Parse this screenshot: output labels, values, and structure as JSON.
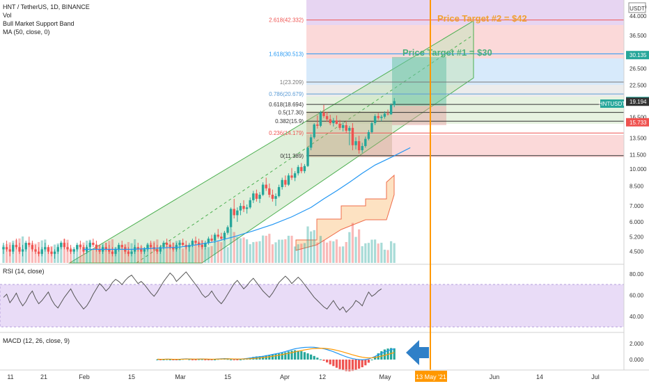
{
  "header": {
    "symbol": "HNT / TetherUS, 1D, BINANCE",
    "vol": "Vol",
    "band": "Bull Market Support Band",
    "ma": "MA (50, close, 0)",
    "currency": "USDT"
  },
  "colors": {
    "up": "#26a69a",
    "down": "#ef5350",
    "ma": "#2196f3",
    "rsi_line": "#555555",
    "rsi_band": "#e9dcf7",
    "macd": "#2196f3",
    "signal": "#ff9800",
    "channel": "#4caf50",
    "vertical_line": "#ff9800",
    "arrow": "#2f80c8"
  },
  "annotations": {
    "target1": "Price Target #1 = $30",
    "target2": "Price Target #2 = $42",
    "date_marker": "13 May '21"
  },
  "fib_levels": [
    {
      "label": "2.618(42.332)",
      "price": 42.332,
      "color": "#ef5350"
    },
    {
      "label": "1.618(30.513)",
      "price": 30.513,
      "color": "#2196f3"
    },
    {
      "label": "1(23.209)",
      "price": 23.209,
      "color": "#787878"
    },
    {
      "label": "0.786(20.679)",
      "price": 20.679,
      "color": "#5b9bd5"
    },
    {
      "label": "0.618(18.694)",
      "price": 18.694,
      "color": "#333333"
    },
    {
      "label": "0.5(17.30)",
      "price": 17.3,
      "color": "#333333"
    },
    {
      "label": "0.382(15.9)",
      "price": 15.9,
      "color": "#333333"
    },
    {
      "label": "0.236(14.179)",
      "price": 14.179,
      "color": "#ef5350"
    },
    {
      "label": "0(11.389)",
      "price": 11.389,
      "color": "#333333"
    }
  ],
  "price_badges": [
    {
      "text": "30.135",
      "price": 30.135,
      "color": "#26a69a"
    },
    {
      "text": "19.328",
      "price": 19.328,
      "color": "#26a69a"
    },
    {
      "text": "19.194",
      "price": 19.194,
      "color": "#333333"
    },
    {
      "text": "15.733",
      "price": 15.733,
      "color": "#ef5350"
    }
  ],
  "ticker_tag": "HNTUSDT",
  "price_axis": [
    "48.000",
    "44.000",
    "36.500",
    "30.135",
    "26.500",
    "22.500",
    "19.328",
    "16.500",
    "13.500",
    "11.500",
    "10.000",
    "8.500",
    "7.000",
    "6.000",
    "5.200",
    "4.500"
  ],
  "rsi_panel": {
    "label": "RSI (14, close)",
    "ticks": [
      "80.00",
      "60.00",
      "40.00"
    ]
  },
  "macd_panel": {
    "label": "MACD (12, 26, close, 9)",
    "ticks": [
      "2.000",
      "0.000"
    ]
  },
  "time_axis": [
    "11",
    "21",
    "Feb",
    "15",
    "Mar",
    "15",
    "Apr",
    "12",
    "May",
    "Jun",
    "14",
    "Jul"
  ],
  "chart_data": {
    "type": "candlestick",
    "y_scale": "log",
    "ylim": [
      4.2,
      50
    ],
    "x_start": "2021-01-05",
    "candles": [
      [
        4.6,
        4.9,
        4.4,
        4.7
      ],
      [
        4.7,
        5.0,
        4.5,
        4.6
      ],
      [
        4.6,
        4.8,
        4.3,
        4.5
      ],
      [
        4.5,
        4.9,
        4.4,
        4.8
      ],
      [
        4.8,
        5.1,
        4.6,
        4.7
      ],
      [
        4.7,
        4.9,
        4.4,
        4.5
      ],
      [
        4.5,
        4.8,
        4.3,
        4.6
      ],
      [
        4.6,
        5.0,
        4.5,
        4.9
      ],
      [
        4.9,
        5.2,
        4.7,
        4.8
      ],
      [
        4.8,
        5.0,
        4.5,
        4.6
      ],
      [
        4.6,
        4.8,
        4.4,
        4.5
      ],
      [
        4.5,
        4.7,
        4.3,
        4.4
      ],
      [
        4.4,
        4.7,
        4.3,
        4.6
      ],
      [
        4.6,
        4.9,
        4.5,
        4.7
      ],
      [
        4.7,
        4.8,
        4.4,
        4.5
      ],
      [
        4.5,
        4.7,
        4.3,
        4.4
      ],
      [
        4.4,
        4.6,
        4.2,
        4.5
      ],
      [
        4.5,
        4.8,
        4.4,
        4.7
      ],
      [
        4.7,
        5.0,
        4.6,
        4.9
      ],
      [
        4.9,
        5.1,
        4.6,
        4.7
      ],
      [
        4.7,
        4.9,
        4.5,
        4.6
      ],
      [
        4.6,
        4.8,
        4.4,
        4.5
      ],
      [
        4.5,
        4.7,
        4.4,
        4.6
      ],
      [
        4.6,
        4.9,
        4.5,
        4.8
      ],
      [
        4.8,
        5.0,
        4.6,
        4.7
      ],
      [
        4.7,
        4.8,
        4.4,
        4.5
      ],
      [
        4.5,
        4.8,
        4.4,
        4.7
      ],
      [
        4.7,
        5.0,
        4.6,
        4.9
      ],
      [
        4.9,
        5.1,
        4.7,
        4.8
      ],
      [
        4.8,
        5.0,
        4.5,
        4.6
      ],
      [
        4.6,
        4.8,
        4.4,
        4.5
      ],
      [
        4.5,
        4.8,
        4.4,
        4.7
      ],
      [
        4.7,
        4.9,
        4.5,
        4.6
      ],
      [
        4.6,
        4.8,
        4.4,
        4.5
      ],
      [
        4.5,
        4.7,
        4.3,
        4.4
      ],
      [
        4.4,
        4.7,
        4.3,
        4.6
      ],
      [
        4.6,
        4.9,
        4.5,
        4.8
      ],
      [
        4.8,
        5.0,
        4.6,
        4.7
      ],
      [
        4.7,
        4.8,
        4.4,
        4.5
      ],
      [
        4.5,
        4.7,
        4.3,
        4.4
      ],
      [
        4.4,
        4.6,
        4.3,
        4.5
      ],
      [
        4.5,
        4.8,
        4.4,
        4.7
      ],
      [
        4.7,
        4.9,
        4.5,
        4.6
      ],
      [
        4.6,
        4.8,
        4.4,
        4.5
      ],
      [
        4.5,
        4.7,
        4.4,
        4.6
      ],
      [
        4.6,
        4.9,
        4.5,
        4.8
      ],
      [
        4.8,
        5.0,
        4.6,
        4.7
      ],
      [
        4.7,
        4.9,
        4.5,
        4.6
      ],
      [
        4.6,
        4.8,
        4.4,
        4.5
      ],
      [
        4.5,
        4.8,
        4.4,
        4.7
      ],
      [
        4.7,
        5.0,
        4.6,
        4.9
      ],
      [
        4.9,
        5.1,
        4.7,
        4.8
      ],
      [
        4.8,
        5.0,
        4.6,
        4.7
      ],
      [
        4.7,
        4.9,
        4.5,
        4.6
      ],
      [
        4.6,
        4.9,
        4.5,
        4.8
      ],
      [
        4.8,
        5.0,
        4.6,
        4.9
      ],
      [
        4.9,
        5.1,
        4.7,
        4.8
      ],
      [
        4.8,
        5.0,
        4.6,
        4.7
      ],
      [
        4.7,
        4.9,
        4.5,
        4.8
      ],
      [
        4.8,
        5.1,
        4.7,
        5.0
      ],
      [
        5.0,
        5.2,
        4.8,
        4.9
      ],
      [
        4.9,
        5.1,
        4.7,
        4.8
      ],
      [
        4.8,
        5.0,
        4.6,
        4.7
      ],
      [
        4.7,
        5.0,
        4.6,
        4.9
      ],
      [
        4.9,
        5.2,
        4.8,
        5.1
      ],
      [
        5.1,
        5.3,
        4.9,
        5.0
      ],
      [
        5.0,
        5.4,
        4.9,
        5.3
      ],
      [
        5.3,
        5.6,
        5.1,
        5.2
      ],
      [
        5.2,
        5.4,
        5.0,
        5.1
      ],
      [
        5.1,
        5.5,
        5.0,
        5.4
      ],
      [
        5.4,
        5.8,
        5.3,
        5.7
      ],
      [
        5.7,
        6.9,
        5.6,
        6.8
      ],
      [
        6.8,
        7.5,
        6.2,
        6.4
      ],
      [
        6.4,
        6.9,
        6.0,
        6.7
      ],
      [
        6.7,
        7.2,
        6.4,
        7.0
      ],
      [
        7.0,
        7.4,
        6.6,
        6.8
      ],
      [
        6.8,
        7.1,
        6.5,
        6.9
      ],
      [
        6.9,
        7.6,
        6.8,
        7.4
      ],
      [
        7.4,
        8.1,
        7.2,
        7.9
      ],
      [
        7.9,
        8.2,
        7.3,
        7.5
      ],
      [
        7.5,
        8.0,
        7.2,
        7.8
      ],
      [
        7.8,
        8.8,
        7.7,
        8.6
      ],
      [
        8.6,
        9.2,
        8.1,
        8.3
      ],
      [
        8.3,
        8.7,
        7.6,
        7.8
      ],
      [
        7.8,
        8.2,
        7.3,
        7.5
      ],
      [
        7.5,
        7.9,
        7.0,
        7.7
      ],
      [
        7.7,
        8.6,
        7.6,
        8.4
      ],
      [
        8.4,
        9.2,
        8.2,
        9.0
      ],
      [
        9.0,
        9.4,
        8.4,
        8.6
      ],
      [
        8.6,
        9.6,
        8.5,
        9.4
      ],
      [
        9.4,
        10.1,
        9.0,
        9.2
      ],
      [
        9.2,
        9.8,
        8.9,
        9.6
      ],
      [
        9.6,
        10.4,
        9.4,
        10.2
      ],
      [
        10.2,
        10.6,
        9.6,
        9.8
      ],
      [
        9.8,
        10.5,
        9.6,
        10.3
      ],
      [
        10.3,
        12.4,
        10.2,
        12.3
      ],
      [
        12.3,
        14.0,
        12.0,
        13.6
      ],
      [
        13.6,
        15.6,
        13.4,
        15.4
      ],
      [
        15.4,
        16.8,
        14.8,
        15.2
      ],
      [
        15.2,
        17.6,
        15.0,
        17.3
      ],
      [
        17.3,
        18.6,
        16.4,
        16.7
      ],
      [
        16.7,
        17.4,
        15.8,
        16.2
      ],
      [
        16.2,
        16.9,
        15.3,
        15.6
      ],
      [
        15.6,
        16.4,
        15.1,
        16.0
      ],
      [
        16.0,
        16.8,
        15.4,
        15.5
      ],
      [
        15.5,
        16.1,
        14.6,
        14.9
      ],
      [
        14.9,
        15.7,
        14.4,
        15.3
      ],
      [
        15.3,
        15.9,
        14.2,
        14.5
      ],
      [
        14.5,
        15.2,
        12.6,
        14.9
      ],
      [
        14.9,
        15.6,
        12.0,
        12.6
      ],
      [
        12.6,
        13.6,
        12.1,
        13.1
      ],
      [
        13.1,
        13.8,
        11.6,
        12.0
      ],
      [
        12.0,
        12.9,
        11.7,
        12.5
      ],
      [
        12.5,
        13.7,
        12.3,
        13.4
      ],
      [
        13.4,
        14.6,
        13.2,
        14.3
      ],
      [
        14.3,
        15.8,
        14.1,
        15.6
      ],
      [
        15.6,
        17.0,
        15.3,
        16.7
      ],
      [
        16.7,
        17.2,
        16.1,
        16.4
      ],
      [
        16.4,
        16.9,
        15.9,
        16.6
      ],
      [
        16.6,
        17.5,
        16.3,
        17.1
      ],
      [
        17.1,
        17.8,
        16.8,
        17.0
      ],
      [
        17.0,
        18.9,
        16.9,
        18.6
      ],
      [
        18.6,
        19.9,
        18.2,
        19.3
      ]
    ],
    "ma50": [
      [
        25,
        4.6
      ],
      [
        40,
        4.6
      ],
      [
        55,
        4.7
      ],
      [
        60,
        4.8
      ],
      [
        66,
        4.95
      ],
      [
        72,
        5.2
      ],
      [
        78,
        5.5
      ],
      [
        84,
        5.85
      ],
      [
        90,
        6.3
      ],
      [
        96,
        6.9
      ],
      [
        100,
        7.5
      ],
      [
        104,
        8.1
      ],
      [
        108,
        8.8
      ],
      [
        112,
        9.6
      ],
      [
        116,
        10.4
      ],
      [
        121,
        11.2
      ],
      [
        127,
        12.3
      ]
    ],
    "rsi": [
      58,
      61,
      53,
      57,
      62,
      55,
      50,
      54,
      60,
      64,
      57,
      52,
      55,
      59,
      63,
      56,
      51,
      48,
      53,
      58,
      62,
      66,
      60,
      55,
      51,
      47,
      50,
      55,
      61,
      66,
      71,
      68,
      64,
      67,
      72,
      75,
      73,
      70,
      74,
      77,
      79,
      75,
      71,
      73,
      70,
      66,
      62,
      59,
      63,
      68,
      73,
      77,
      81,
      78,
      73,
      76,
      79,
      82,
      78,
      74,
      70,
      66,
      61,
      58,
      60,
      64,
      59,
      55,
      52,
      56,
      61,
      66,
      71,
      74,
      70,
      66,
      69,
      73,
      76,
      72,
      68,
      64,
      61,
      58,
      62,
      67,
      72,
      75,
      78,
      75,
      71,
      74,
      77,
      74,
      70,
      66,
      62,
      58,
      55,
      52,
      49,
      47,
      51,
      55,
      50,
      46,
      49,
      44,
      47,
      50,
      55,
      53,
      50,
      57,
      63,
      59,
      61,
      64,
      66
    ],
    "macd": [
      0.05,
      0.03,
      0.04,
      0.06,
      0.05,
      0.03,
      0.02,
      0.04,
      0.07,
      0.09,
      0.08,
      0.06,
      0.05,
      0.07,
      0.08,
      0.06,
      0.04,
      0.03,
      0.05,
      0.08,
      0.1,
      0.12,
      0.11,
      0.09,
      0.07,
      0.05,
      0.07,
      0.1,
      0.14,
      0.19,
      0.25,
      0.3,
      0.35,
      0.4,
      0.48,
      0.56,
      0.64,
      0.72,
      0.8,
      0.9,
      1.0,
      1.12,
      1.24,
      1.35,
      1.42,
      1.48,
      1.52,
      1.54,
      1.55,
      1.53,
      1.48,
      1.42,
      1.35,
      1.25,
      1.12,
      0.98,
      0.82,
      0.66,
      0.5,
      0.35,
      0.22,
      0.12,
      0.05,
      0.0,
      -0.02,
      0.0,
      0.08,
      0.22,
      0.4,
      0.6,
      0.78,
      0.95,
      1.1,
      1.24,
      1.35
    ],
    "signal": [
      0.05,
      0.04,
      0.04,
      0.05,
      0.05,
      0.04,
      0.04,
      0.04,
      0.05,
      0.06,
      0.07,
      0.07,
      0.06,
      0.06,
      0.07,
      0.07,
      0.06,
      0.05,
      0.05,
      0.06,
      0.07,
      0.08,
      0.09,
      0.09,
      0.08,
      0.07,
      0.07,
      0.08,
      0.09,
      0.11,
      0.14,
      0.17,
      0.21,
      0.25,
      0.3,
      0.36,
      0.42,
      0.48,
      0.55,
      0.62,
      0.7,
      0.78,
      0.87,
      0.96,
      1.05,
      1.13,
      1.21,
      1.28,
      1.34,
      1.38,
      1.4,
      1.41,
      1.4,
      1.37,
      1.32,
      1.25,
      1.16,
      1.06,
      0.95,
      0.83,
      0.71,
      0.59,
      0.48,
      0.38,
      0.3,
      0.24,
      0.21,
      0.22,
      0.27,
      0.34,
      0.43,
      0.53,
      0.64,
      0.76,
      0.88
    ]
  }
}
